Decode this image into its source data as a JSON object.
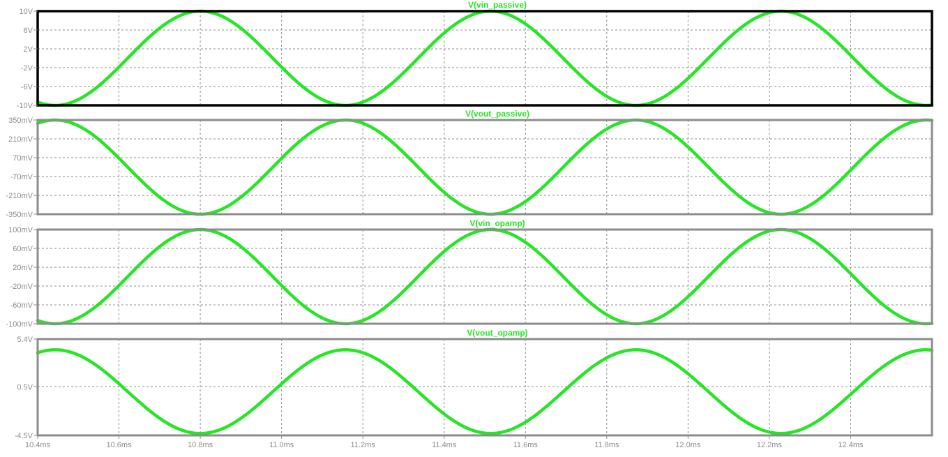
{
  "colors": {
    "trace": "#24e624",
    "frame": "#8c8c8c",
    "active_frame": "#000000",
    "tick_text": "#8c8c8c",
    "title": "#24e624"
  },
  "chart_data": {
    "type": "line",
    "shared_x": {
      "unit": "ms",
      "range": [
        10.4,
        12.6
      ],
      "ticks": [
        10.4,
        10.6,
        10.8,
        11.0,
        11.2,
        11.4,
        11.6,
        11.8,
        12.0,
        12.2,
        12.4
      ],
      "tick_labels": [
        "10.4ms",
        "10.6ms",
        "10.8ms",
        "11.0ms",
        "11.2ms",
        "11.4ms",
        "11.6ms",
        "11.8ms",
        "12.0ms",
        "12.2ms",
        "12.4ms"
      ]
    },
    "grid": true,
    "panes": [
      {
        "title": "V(vin_passive)",
        "active": true,
        "ylim": [
          -10,
          10
        ],
        "yticks": [
          10,
          6,
          2,
          -2,
          -6,
          -10
        ],
        "ytick_labels": [
          "10V",
          "6V",
          "2V",
          "-2V",
          "-6V",
          "-10V"
        ],
        "series": [
          {
            "name": "V(vin_passive)",
            "waveform": "sine",
            "amplitude": 10,
            "offset": 0,
            "frequency_per_ms": 1.4,
            "peak_at_ms": 10.8
          }
        ]
      },
      {
        "title": "V(vout_passive)",
        "active": false,
        "ylim": [
          -350,
          350
        ],
        "yticks": [
          350,
          210,
          70,
          -70,
          -210,
          -350
        ],
        "ytick_labels": [
          "350mV",
          "210mV",
          "70mV",
          "-70mV",
          "-210mV",
          "-350mV"
        ],
        "series": [
          {
            "name": "V(vout_passive)",
            "waveform": "sine",
            "amplitude": 350,
            "offset": 0,
            "frequency_per_ms": 1.4,
            "peak_at_ms": 10.443
          }
        ]
      },
      {
        "title": "V(vin_opamp)",
        "active": false,
        "ylim": [
          -100,
          100
        ],
        "yticks": [
          100,
          60,
          20,
          -20,
          -60,
          -100
        ],
        "ytick_labels": [
          "100mV",
          "60mV",
          "20mV",
          "-20mV",
          "-60mV",
          "-100mV"
        ],
        "series": [
          {
            "name": "V(vin_opamp)",
            "waveform": "sine",
            "amplitude": 100,
            "offset": 0,
            "frequency_per_ms": 1.4,
            "peak_at_ms": 10.8
          }
        ]
      },
      {
        "title": "V(vout_opamp)",
        "active": false,
        "ylim": [
          -4.5,
          5.4
        ],
        "yticks": [
          5.4,
          0.5,
          -4.5
        ],
        "ytick_labels": [
          "5.4V",
          "0.5V",
          "-4.5V"
        ],
        "series": [
          {
            "name": "V(vout_opamp)",
            "waveform": "sine",
            "amplitude": 4.3,
            "offset": 0,
            "frequency_per_ms": 1.4,
            "peak_at_ms": 10.443
          }
        ]
      }
    ]
  }
}
